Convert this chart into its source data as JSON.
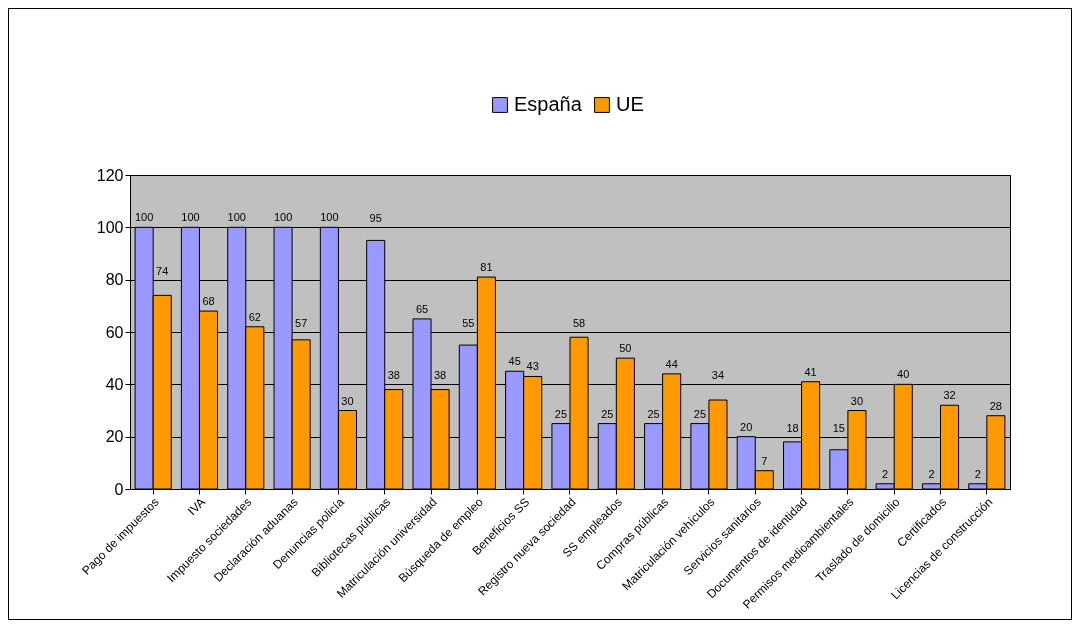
{
  "chart_data": {
    "type": "bar",
    "categories": [
      "Pago de impuestos",
      "IVA",
      "Impuesto sociedades",
      "Declaración aduanas",
      "Denuncias policía",
      "Bibliotecas públicas",
      "Matriculación universidad",
      "Búsqueda de empleo",
      "Beneficios SS",
      "Registro nueva sociedad",
      "SS empleados",
      "Compras públicas",
      "Matriculación vehículos",
      "Servicios sanitarios",
      "Documentos de identidad",
      "Permisos medioambientales",
      "Traslado de domicilio",
      "Certificados",
      "Licencias de construcción"
    ],
    "series": [
      {
        "name": "España",
        "color": "#9999ff",
        "values": [
          100,
          100,
          100,
          100,
          100,
          95,
          65,
          55,
          45,
          25,
          25,
          25,
          25,
          20,
          18,
          15,
          2,
          2,
          2
        ]
      },
      {
        "name": "UE",
        "color": "#ff9900",
        "values": [
          74,
          68,
          62,
          57,
          30,
          38,
          38,
          81,
          43,
          58,
          50,
          44,
          34,
          7,
          41,
          30,
          40,
          32,
          28
        ]
      }
    ],
    "ylim": [
      0,
      120
    ],
    "yticks": [
      0,
      20,
      40,
      60,
      80,
      100,
      120
    ],
    "grid": "y",
    "legend": "top",
    "data_labels": true
  }
}
